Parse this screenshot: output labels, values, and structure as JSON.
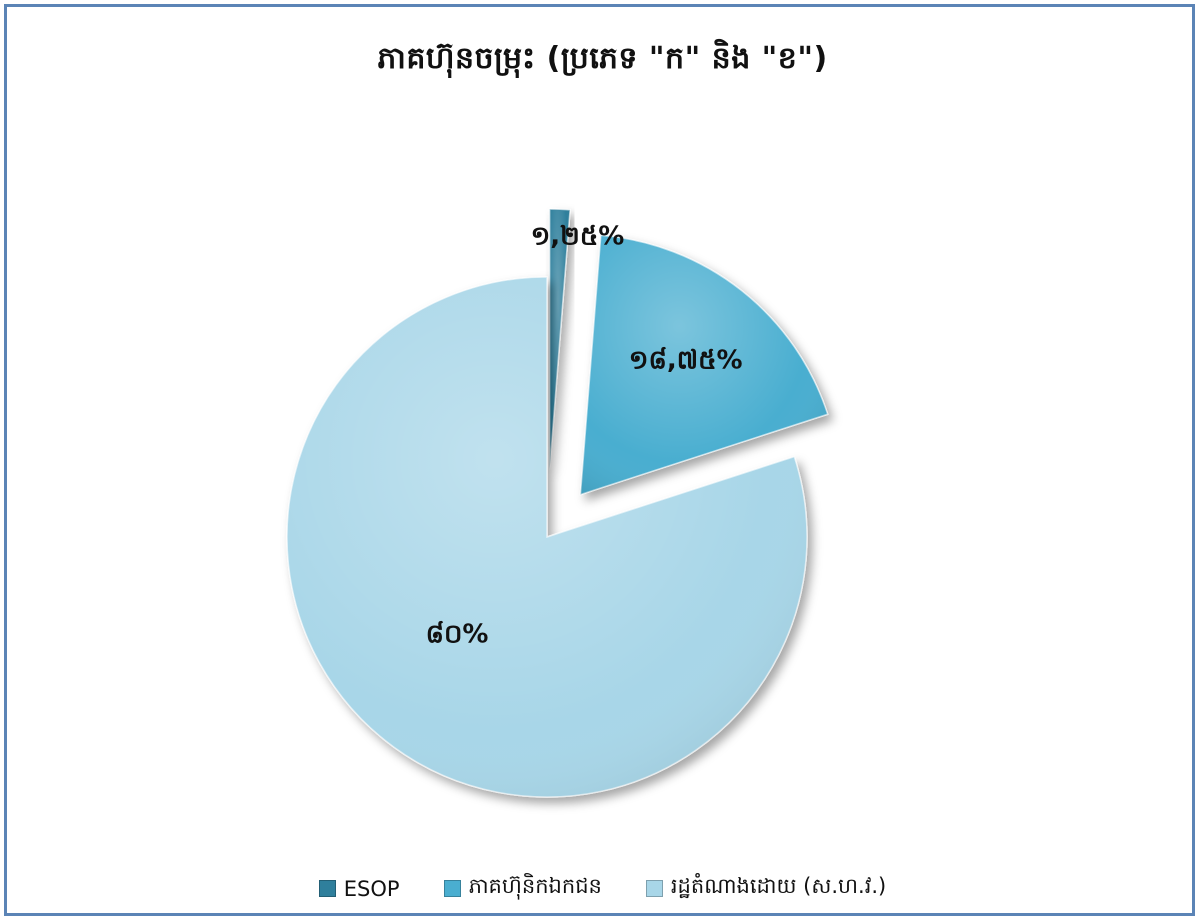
{
  "chart_data": {
    "type": "pie",
    "title": "ភាគហ៊ុនចម្រុះ (ប្រភេទ \"ក\" និង \"ខ\")",
    "legend_position": "bottom",
    "slices": [
      {
        "name": "ESOP",
        "value": 1.25,
        "label": "១,២៥%",
        "color": "#2f7f9c"
      },
      {
        "name": "ភាគហ៊ុនិកឯកជន",
        "value": 18.75,
        "label": "១៨,៧៥%",
        "color": "#4aaed0"
      },
      {
        "name": "រដ្ឋតំណាងដោយ (ស.ហ.វ.)",
        "value": 80,
        "label": "៨០%",
        "color": "#a8d6e8"
      }
    ]
  }
}
